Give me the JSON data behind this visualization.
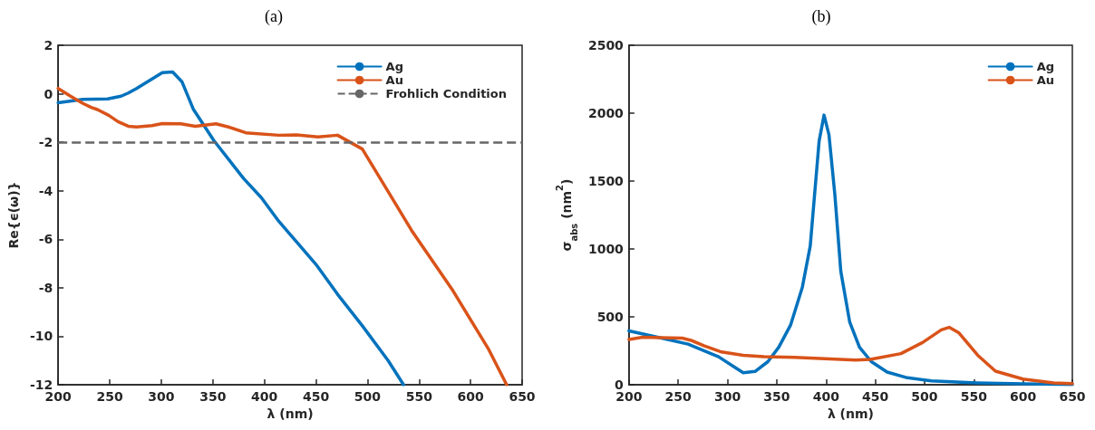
{
  "chart_data": [
    {
      "type": "line",
      "title": "(a)",
      "xlabel": "λ (nm)",
      "ylabel": "Re{ϵ(ω)}",
      "xlim": [
        200,
        650
      ],
      "xticks": [
        200,
        250,
        300,
        350,
        400,
        450,
        500,
        550,
        600,
        650
      ],
      "ylim": [
        -12,
        2
      ],
      "yticks": [
        -12,
        -10,
        -8,
        -6,
        -4,
        -2,
        0,
        2
      ],
      "grid": false,
      "legend": "top right",
      "marker": "none",
      "line_style": "solid",
      "series": [
        {
          "name": "Ag",
          "color": "#0072bd",
          "x": [
            200,
            224,
            248,
            261,
            268,
            276,
            291,
            301,
            311,
            320,
            331,
            351,
            380,
            397,
            414,
            431,
            451,
            471,
            495,
            520,
            535
          ],
          "values": [
            -0.37,
            -0.23,
            -0.21,
            -0.1,
            0.03,
            0.22,
            0.61,
            0.87,
            0.9,
            0.5,
            -0.63,
            -1.93,
            -3.5,
            -4.28,
            -5.26,
            -6.1,
            -7.09,
            -8.27,
            -9.57,
            -11.0,
            -12.0
          ]
        },
        {
          "name": "Au",
          "color": "#d95319",
          "x": [
            200,
            212,
            224,
            232,
            238,
            249,
            258,
            268,
            276,
            291,
            301,
            319,
            333,
            353,
            366,
            382,
            414,
            431,
            452,
            471,
            495,
            517,
            543,
            583,
            617,
            635
          ],
          "values": [
            0.22,
            -0.1,
            -0.4,
            -0.56,
            -0.65,
            -0.89,
            -1.15,
            -1.34,
            -1.37,
            -1.31,
            -1.23,
            -1.24,
            -1.34,
            -1.24,
            -1.38,
            -1.61,
            -1.71,
            -1.7,
            -1.78,
            -1.71,
            -2.28,
            -3.82,
            -5.65,
            -8.13,
            -10.5,
            -12.0
          ]
        }
      ],
      "ref_lines": [
        {
          "axis": "y",
          "value": -2,
          "label": "Frohlich Condition",
          "color": "#666666",
          "line_style": "dashed"
        }
      ]
    },
    {
      "type": "line",
      "title": "(b)",
      "xlabel": "λ (nm)",
      "ylabel": "σ$_{abs}$ (nm$^{2}$)",
      "xlim": [
        200,
        650
      ],
      "xticks": [
        200,
        250,
        300,
        350,
        400,
        450,
        500,
        550,
        600,
        650
      ],
      "ylim": [
        0,
        2500
      ],
      "yticks": [
        0,
        500,
        1000,
        1500,
        2000,
        2500
      ],
      "grid": false,
      "legend": "top right",
      "marker": "none",
      "line_style": "solid",
      "series": [
        {
          "name": "Ag",
          "color": "#0072bd",
          "x": [
            200,
            229,
            260,
            291,
            306,
            316,
            328,
            341,
            352,
            364,
            376,
            384,
            393,
            398,
            403,
            409,
            415,
            424,
            434,
            446,
            462,
            481,
            507,
            553,
            600,
            650
          ],
          "values": [
            397,
            350,
            299,
            206,
            135,
            89,
            98,
            170,
            276,
            439,
            719,
            1023,
            1794,
            1986,
            1841,
            1397,
            836,
            463,
            276,
            170,
            93,
            54,
            28,
            14,
            7,
            2
          ]
        },
        {
          "name": "Au",
          "color": "#d95319",
          "x": [
            200,
            214,
            232,
            254,
            263,
            276,
            294,
            316,
            337,
            368,
            399,
            430,
            445,
            476,
            498,
            517,
            525,
            535,
            554,
            572,
            600,
            631,
            650
          ],
          "values": [
            334,
            350,
            346,
            343,
            327,
            287,
            241,
            217,
            206,
            201,
            192,
            182,
            187,
            229,
            311,
            404,
            423,
            381,
            217,
            100,
            42,
            14,
            9
          ]
        }
      ]
    }
  ]
}
